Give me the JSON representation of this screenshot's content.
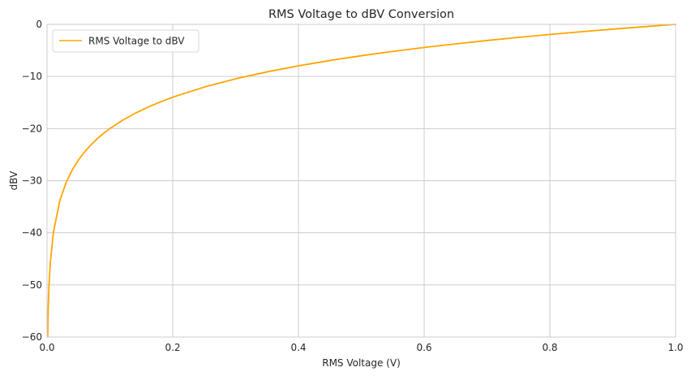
{
  "chart_data": {
    "type": "line",
    "title": "RMS Voltage to dBV Conversion",
    "xlabel": "RMS Voltage (V)",
    "ylabel": "dBV",
    "xlim": [
      0.0,
      1.0
    ],
    "ylim": [
      -60,
      0
    ],
    "x_ticks": [
      0.0,
      0.2,
      0.4,
      0.6,
      0.8,
      1.0
    ],
    "x_tick_labels": [
      "0.0",
      "0.2",
      "0.4",
      "0.6",
      "0.8",
      "1.0"
    ],
    "y_ticks": [
      -60,
      -50,
      -40,
      -30,
      -20,
      -10,
      0
    ],
    "y_tick_labels": [
      "−60",
      "−50",
      "−40",
      "−30",
      "−20",
      "−10",
      "0"
    ],
    "grid": true,
    "legend_position": "top-left",
    "series": [
      {
        "name": "RMS Voltage to dBV",
        "color": "#FFA500",
        "x": [
          0.001,
          0.002,
          0.003,
          0.005,
          0.0101,
          0.0202,
          0.0303,
          0.0404,
          0.0505,
          0.0606,
          0.0707,
          0.0808,
          0.0909,
          0.101,
          0.1212,
          0.1414,
          0.1616,
          0.1818,
          0.202,
          0.2525,
          0.303,
          0.3535,
          0.404,
          0.4545,
          0.505,
          0.5556,
          0.6061,
          0.6566,
          0.7071,
          0.7576,
          0.8081,
          0.8586,
          0.9091,
          0.9596,
          1.0
        ],
        "y": [
          -60.0,
          -53.98,
          -50.46,
          -46.02,
          -39.91,
          -33.89,
          -30.37,
          -27.87,
          -25.93,
          -24.35,
          -23.01,
          -21.85,
          -20.83,
          -19.91,
          -18.33,
          -16.99,
          -15.83,
          -14.81,
          -13.89,
          -11.95,
          -10.37,
          -9.03,
          -7.87,
          -6.85,
          -5.93,
          -5.11,
          -4.35,
          -3.66,
          -3.01,
          -2.41,
          -1.85,
          -1.32,
          -0.83,
          -0.36,
          0.0
        ]
      }
    ]
  }
}
